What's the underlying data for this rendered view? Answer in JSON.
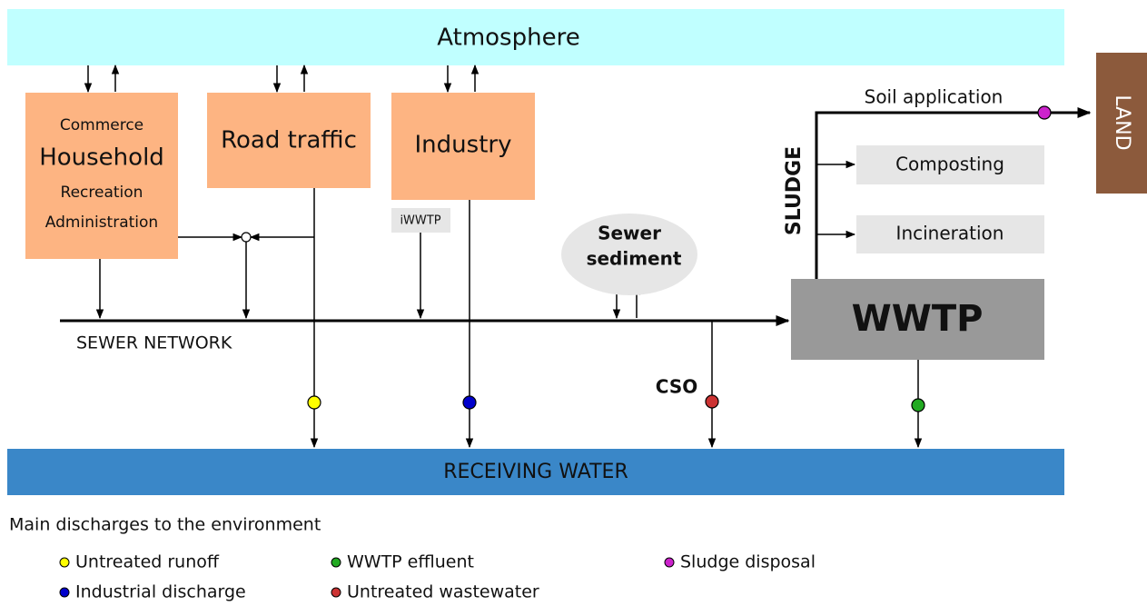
{
  "atmosphere": "Atmosphere",
  "sources": {
    "household": {
      "lines": [
        "Commerce",
        "Household",
        "Recreation",
        "Administration"
      ]
    },
    "road_traffic": "Road traffic",
    "industry": "Industry",
    "iwwtp": "iWWTP"
  },
  "sewer_sediment": [
    "Sewer",
    "sediment"
  ],
  "sewer_network": "SEWER NETWORK",
  "cso": "CSO",
  "wwtp": "WWTP",
  "sludge": {
    "label": "SLUDGE",
    "soil_application": "Soil application",
    "composting": "Composting",
    "incineration": "Incineration"
  },
  "land": "LAND",
  "receiving_water": "RECEIVING WATER",
  "legend": {
    "title": "Main discharges to the environment",
    "items": [
      {
        "label": "Untreated runoff",
        "color": "#ffff00"
      },
      {
        "label": "Industrial discharge",
        "color": "#0000cc"
      },
      {
        "label": "WWTP effluent",
        "color": "#22aa22"
      },
      {
        "label": "Untreated wastewater",
        "color": "#cc3333"
      },
      {
        "label": "Sludge disposal",
        "color": "#cc22cc"
      }
    ]
  }
}
